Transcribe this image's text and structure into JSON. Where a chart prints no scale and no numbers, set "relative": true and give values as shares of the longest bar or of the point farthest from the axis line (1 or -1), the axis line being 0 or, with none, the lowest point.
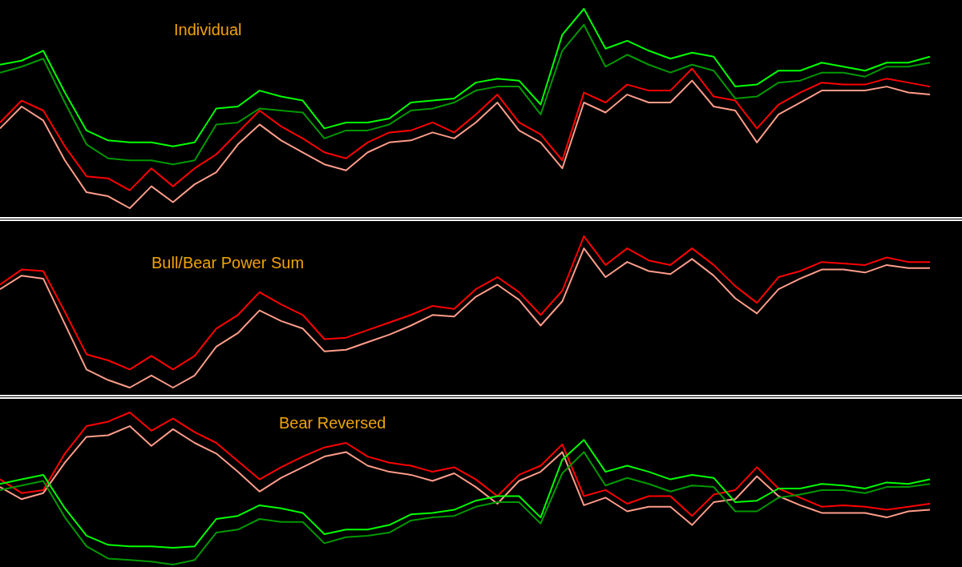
{
  "chart_data": [
    {
      "type": "line",
      "title": "Individual",
      "relative": true,
      "marker": "none",
      "tick_labels": false,
      "categories": [
        null,
        null,
        null,
        null,
        null,
        null,
        null,
        null,
        null,
        null,
        null,
        null,
        null,
        null,
        null,
        null,
        null,
        null,
        null,
        null,
        null,
        null,
        null,
        null,
        null,
        null,
        null,
        null,
        null,
        null,
        null,
        null,
        null,
        null,
        null,
        null,
        null,
        null,
        null,
        null,
        null,
        null,
        null,
        null
      ],
      "series": [
        {
          "color": "#00ff00",
          "values": [
            0.72,
            0.74,
            0.79,
            0.58,
            0.39,
            0.34,
            0.33,
            0.33,
            0.31,
            0.33,
            0.5,
            0.51,
            0.59,
            0.56,
            0.54,
            0.4,
            0.43,
            0.43,
            0.45,
            0.53,
            0.54,
            0.55,
            0.63,
            0.65,
            0.64,
            0.52,
            0.87,
            1.0,
            0.8,
            0.84,
            0.79,
            0.75,
            0.78,
            0.76,
            0.61,
            0.62,
            0.69,
            0.69,
            0.73,
            0.71,
            0.69,
            0.73,
            0.73,
            0.76
          ]
        },
        {
          "color": "#009900",
          "values": [
            0.68,
            0.71,
            0.75,
            0.53,
            0.32,
            0.25,
            0.24,
            0.24,
            0.22,
            0.24,
            0.42,
            0.43,
            0.5,
            0.49,
            0.48,
            0.35,
            0.39,
            0.39,
            0.42,
            0.49,
            0.5,
            0.53,
            0.59,
            0.61,
            0.61,
            0.47,
            0.79,
            0.92,
            0.71,
            0.77,
            0.72,
            0.68,
            0.72,
            0.69,
            0.55,
            0.56,
            0.63,
            0.64,
            0.68,
            0.68,
            0.66,
            0.71,
            0.71,
            0.73
          ]
        },
        {
          "color": "#ff0000",
          "values": [
            0.43,
            0.54,
            0.49,
            0.31,
            0.16,
            0.15,
            0.09,
            0.2,
            0.11,
            0.2,
            0.27,
            0.38,
            0.49,
            0.41,
            0.35,
            0.28,
            0.25,
            0.33,
            0.38,
            0.39,
            0.43,
            0.38,
            0.47,
            0.57,
            0.43,
            0.37,
            0.24,
            0.58,
            0.53,
            0.62,
            0.59,
            0.59,
            0.7,
            0.56,
            0.54,
            0.4,
            0.52,
            0.58,
            0.63,
            0.62,
            0.62,
            0.65,
            0.63,
            0.61
          ]
        },
        {
          "color": "#ff9d8a",
          "values": [
            0.4,
            0.51,
            0.44,
            0.24,
            0.08,
            0.06,
            0.0,
            0.11,
            0.03,
            0.12,
            0.18,
            0.32,
            0.42,
            0.34,
            0.28,
            0.22,
            0.19,
            0.28,
            0.33,
            0.34,
            0.38,
            0.35,
            0.43,
            0.53,
            0.39,
            0.33,
            0.2,
            0.53,
            0.48,
            0.57,
            0.53,
            0.53,
            0.64,
            0.51,
            0.49,
            0.33,
            0.47,
            0.53,
            0.59,
            0.59,
            0.59,
            0.61,
            0.58,
            0.57
          ]
        }
      ]
    },
    {
      "type": "line",
      "title": "Bull/Bear Power Sum",
      "relative": true,
      "marker": "none",
      "tick_labels": false,
      "categories": [
        null,
        null,
        null,
        null,
        null,
        null,
        null,
        null,
        null,
        null,
        null,
        null,
        null,
        null,
        null,
        null,
        null,
        null,
        null,
        null,
        null,
        null,
        null,
        null,
        null,
        null,
        null,
        null,
        null,
        null,
        null,
        null,
        null,
        null,
        null,
        null,
        null,
        null,
        null,
        null,
        null,
        null,
        null,
        null
      ],
      "series": [
        {
          "color": "#ff0000",
          "values": [
            0.68,
            0.78,
            0.77,
            0.5,
            0.22,
            0.18,
            0.12,
            0.21,
            0.12,
            0.21,
            0.39,
            0.48,
            0.63,
            0.55,
            0.48,
            0.32,
            0.33,
            0.38,
            0.43,
            0.48,
            0.54,
            0.52,
            0.65,
            0.73,
            0.63,
            0.48,
            0.64,
            1.0,
            0.81,
            0.92,
            0.84,
            0.81,
            0.92,
            0.81,
            0.67,
            0.56,
            0.73,
            0.77,
            0.83,
            0.82,
            0.81,
            0.86,
            0.83,
            0.83
          ]
        },
        {
          "color": "#ff9d8a",
          "values": [
            0.65,
            0.74,
            0.72,
            0.42,
            0.12,
            0.05,
            0.0,
            0.08,
            0.0,
            0.08,
            0.27,
            0.36,
            0.51,
            0.44,
            0.39,
            0.24,
            0.25,
            0.3,
            0.35,
            0.41,
            0.48,
            0.47,
            0.6,
            0.68,
            0.58,
            0.41,
            0.57,
            0.92,
            0.73,
            0.83,
            0.77,
            0.75,
            0.85,
            0.74,
            0.59,
            0.49,
            0.65,
            0.72,
            0.78,
            0.78,
            0.76,
            0.81,
            0.79,
            0.79
          ]
        }
      ]
    },
    {
      "type": "line",
      "title": "Bear Reversed",
      "relative": true,
      "marker": "none",
      "tick_labels": false,
      "categories": [
        null,
        null,
        null,
        null,
        null,
        null,
        null,
        null,
        null,
        null,
        null,
        null,
        null,
        null,
        null,
        null,
        null,
        null,
        null,
        null,
        null,
        null,
        null,
        null,
        null,
        null,
        null,
        null,
        null,
        null,
        null,
        null,
        null,
        null,
        null,
        null,
        null,
        null,
        null,
        null,
        null,
        null,
        null,
        null
      ],
      "series": [
        {
          "color": "#ff0000",
          "values": [
            0.56,
            0.47,
            0.49,
            0.73,
            0.91,
            0.94,
            1.0,
            0.88,
            0.96,
            0.87,
            0.8,
            0.68,
            0.56,
            0.64,
            0.71,
            0.77,
            0.8,
            0.71,
            0.67,
            0.65,
            0.61,
            0.64,
            0.56,
            0.45,
            0.59,
            0.65,
            0.79,
            0.45,
            0.49,
            0.4,
            0.45,
            0.45,
            0.32,
            0.46,
            0.49,
            0.64,
            0.5,
            0.44,
            0.38,
            0.39,
            0.38,
            0.36,
            0.38,
            0.4
          ]
        },
        {
          "color": "#ff9d8a",
          "values": [
            0.51,
            0.43,
            0.47,
            0.67,
            0.84,
            0.85,
            0.91,
            0.78,
            0.89,
            0.8,
            0.73,
            0.61,
            0.48,
            0.57,
            0.64,
            0.71,
            0.74,
            0.65,
            0.61,
            0.59,
            0.55,
            0.6,
            0.51,
            0.4,
            0.55,
            0.61,
            0.74,
            0.39,
            0.44,
            0.35,
            0.38,
            0.38,
            0.26,
            0.41,
            0.43,
            0.58,
            0.45,
            0.39,
            0.34,
            0.34,
            0.34,
            0.31,
            0.35,
            0.36
          ]
        },
        {
          "color": "#00ff00",
          "values": [
            0.53,
            0.56,
            0.59,
            0.37,
            0.19,
            0.13,
            0.12,
            0.12,
            0.11,
            0.12,
            0.3,
            0.32,
            0.39,
            0.37,
            0.34,
            0.2,
            0.23,
            0.23,
            0.26,
            0.33,
            0.34,
            0.36,
            0.42,
            0.45,
            0.45,
            0.31,
            0.69,
            0.82,
            0.61,
            0.65,
            0.61,
            0.56,
            0.59,
            0.57,
            0.41,
            0.42,
            0.5,
            0.5,
            0.53,
            0.52,
            0.5,
            0.54,
            0.53,
            0.56
          ]
        },
        {
          "color": "#009900",
          "values": [
            0.49,
            0.52,
            0.55,
            0.31,
            0.12,
            0.04,
            0.03,
            0.02,
            0.0,
            0.03,
            0.21,
            0.23,
            0.3,
            0.28,
            0.28,
            0.14,
            0.18,
            0.19,
            0.21,
            0.29,
            0.31,
            0.32,
            0.38,
            0.41,
            0.41,
            0.27,
            0.6,
            0.74,
            0.52,
            0.57,
            0.53,
            0.48,
            0.52,
            0.51,
            0.35,
            0.35,
            0.44,
            0.46,
            0.49,
            0.49,
            0.47,
            0.51,
            0.51,
            0.53
          ]
        }
      ]
    }
  ]
}
